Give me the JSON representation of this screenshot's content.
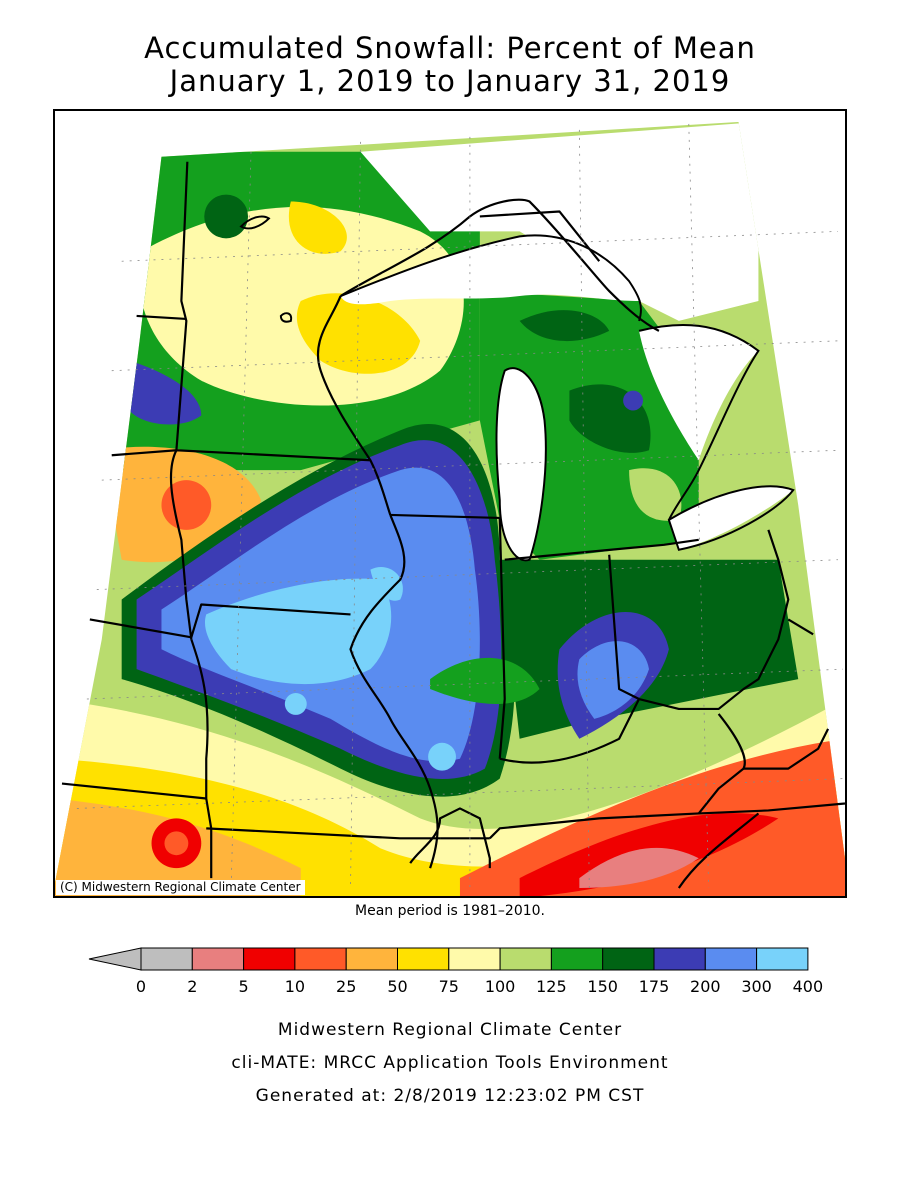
{
  "title": {
    "line1": "Accumulated Snowfall: Percent of Mean",
    "line2": "January 1, 2019 to January 31, 2019"
  },
  "credit": "(C) Midwestern Regional Climate Center",
  "mean_period": "Mean period is 1981–2010.",
  "legend": {
    "arrow_color": "#bebebe",
    "bins": [
      {
        "color": "#bebebe"
      },
      {
        "color": "#e87f7f"
      },
      {
        "color": "#f00000"
      },
      {
        "color": "#ff5a28"
      },
      {
        "color": "#ffb43c"
      },
      {
        "color": "#ffe100"
      },
      {
        "color": "#fffaaa"
      },
      {
        "color": "#b9dc6e"
      },
      {
        "color": "#14a01e"
      },
      {
        "color": "#006414"
      },
      {
        "color": "#3c3cb4"
      },
      {
        "color": "#5a8cf0"
      },
      {
        "color": "#78d2fa"
      }
    ],
    "tick_labels": [
      "0",
      "2",
      "5",
      "10",
      "25",
      "50",
      "75",
      "100",
      "125",
      "150",
      "175",
      "200",
      "300",
      "400"
    ]
  },
  "footer": {
    "line1": "Midwestern Regional Climate Center",
    "line2": "cli-MATE: MRCC Application Tools Environment",
    "line3": "Generated at: 2/8/2019 12:23:02 PM CST"
  }
}
